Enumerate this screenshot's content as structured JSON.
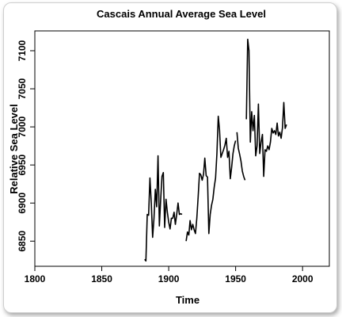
{
  "chart_data": {
    "type": "line",
    "title": "Cascais Annual Average Sea Level",
    "xlabel": "Time",
    "ylabel": "Relative Sea Level",
    "xlim": [
      1800,
      2020
    ],
    "ylim": [
      6817,
      7126
    ],
    "xticks": [
      1800,
      1850,
      1900,
      1950,
      2000
    ],
    "yticks": [
      6850,
      6900,
      6950,
      7000,
      7050,
      7100
    ],
    "grid": false,
    "legend": "none",
    "line_color": "#000000",
    "segments": [
      {
        "x": [
          1882,
          1883,
          1884,
          1885,
          1886,
          1887,
          1888,
          1889,
          1890,
          1891,
          1892,
          1893,
          1894,
          1895,
          1896,
          1897,
          1898,
          1899,
          1900,
          1901,
          1902,
          1903,
          1904,
          1905,
          1906,
          1907,
          1908,
          1909,
          1910
        ],
        "y": [
          6826,
          6824,
          6885,
          6884,
          6933,
          6900,
          6855,
          6880,
          6918,
          6895,
          6962,
          6870,
          6903,
          6935,
          6940,
          6868,
          6905,
          6888,
          6875,
          6866,
          6880,
          6880,
          6888,
          6872,
          6885,
          6900,
          6885,
          6886,
          6885
        ]
      },
      {
        "x": [
          1913,
          1914,
          1915,
          1916,
          1917,
          1918,
          1919,
          1920,
          1921,
          1922,
          1923,
          1924,
          1925,
          1926,
          1927,
          1928,
          1929,
          1930,
          1931,
          1932,
          1933,
          1934,
          1935,
          1936,
          1937,
          1938,
          1939,
          1940,
          1941,
          1942,
          1943,
          1944,
          1945,
          1946,
          1947,
          1948,
          1949,
          1950
        ],
        "y": [
          6850,
          6862,
          6858,
          6877,
          6865,
          6872,
          6865,
          6860,
          6880,
          6908,
          6939,
          6937,
          6930,
          6938,
          6959,
          6936,
          6934,
          6860,
          6885,
          6897,
          6905,
          6921,
          6933,
          6965,
          7014,
          6996,
          6960,
          6965,
          6970,
          6976,
          6985,
          6960,
          6968,
          6932,
          6947,
          6965,
          6975,
          6982
        ]
      },
      {
        "x": [
          1951,
          1952,
          1953,
          1954,
          1955,
          1956,
          1957
        ],
        "y": [
          6993,
          6972,
          6964,
          6955,
          6942,
          6935,
          6930
        ]
      },
      {
        "x": [
          1958,
          1959,
          1960,
          1961,
          1962,
          1963,
          1964,
          1965,
          1966,
          1967,
          1968,
          1969,
          1970,
          1971,
          1972,
          1973,
          1974,
          1975,
          1976,
          1977,
          1978,
          1979,
          1980,
          1981,
          1982,
          1983,
          1984,
          1985,
          1986,
          1987,
          1988
        ],
        "y": [
          7010,
          7115,
          7100,
          6980,
          7020,
          6995,
          7015,
          6962,
          6975,
          7030,
          6965,
          6980,
          6990,
          6935,
          6970,
          6968,
          6975,
          6970,
          6980,
          6998,
          6992,
          6995,
          6990,
          7005,
          6988,
          6993,
          6985,
          6999,
          7032,
          6998,
          7003
        ]
      }
    ]
  }
}
